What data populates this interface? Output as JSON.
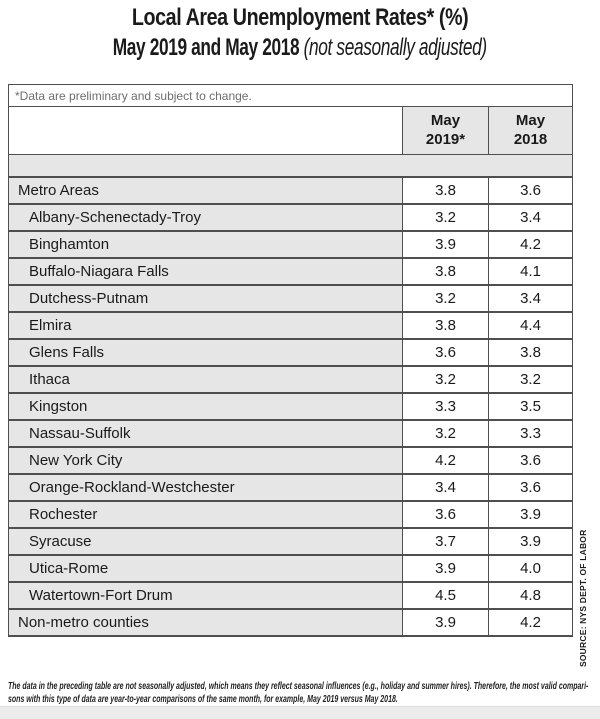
{
  "title": {
    "line1": "Local Area Unemployment Rates* (%)",
    "line2_bold": "May 2019 and May 2018",
    "line2_italic": "(not seasonally adjusted)"
  },
  "table": {
    "note": "*Data are preliminary and subject to change.",
    "header": {
      "col2019": {
        "line1": "May",
        "line2": "2019*"
      },
      "col2018": {
        "line1": "May",
        "line2": "2018"
      }
    },
    "rows": [
      {
        "label": "Metro Areas",
        "indent": false,
        "may2019": "3.8",
        "may2018": "3.6"
      },
      {
        "label": "Albany-Schenectady-Troy",
        "indent": true,
        "may2019": "3.2",
        "may2018": "3.4"
      },
      {
        "label": "Binghamton",
        "indent": true,
        "may2019": "3.9",
        "may2018": "4.2"
      },
      {
        "label": "Buffalo-Niagara Falls",
        "indent": true,
        "may2019": "3.8",
        "may2018": "4.1"
      },
      {
        "label": "Dutchess-Putnam",
        "indent": true,
        "may2019": "3.2",
        "may2018": "3.4"
      },
      {
        "label": "Elmira",
        "indent": true,
        "may2019": "3.8",
        "may2018": "4.4"
      },
      {
        "label": "Glens Falls",
        "indent": true,
        "may2019": "3.6",
        "may2018": "3.8"
      },
      {
        "label": "Ithaca",
        "indent": true,
        "may2019": "3.2",
        "may2018": "3.2"
      },
      {
        "label": "Kingston",
        "indent": true,
        "may2019": "3.3",
        "may2018": "3.5"
      },
      {
        "label": "Nassau-Suffolk",
        "indent": true,
        "may2019": "3.2",
        "may2018": "3.3"
      },
      {
        "label": "New York City",
        "indent": true,
        "may2019": "4.2",
        "may2018": "3.6"
      },
      {
        "label": "Orange-Rockland-Westchester",
        "indent": true,
        "may2019": "3.4",
        "may2018": "3.6"
      },
      {
        "label": "Rochester",
        "indent": true,
        "may2019": "3.6",
        "may2018": "3.9"
      },
      {
        "label": "Syracuse",
        "indent": true,
        "may2019": "3.7",
        "may2018": "3.9"
      },
      {
        "label": "Utica-Rome",
        "indent": true,
        "may2019": "3.9",
        "may2018": "4.0"
      },
      {
        "label": "Watertown-Fort Drum",
        "indent": true,
        "may2019": "4.5",
        "may2018": "4.8"
      },
      {
        "label": "Non-metro counties",
        "indent": false,
        "may2019": "3.9",
        "may2018": "4.2"
      }
    ]
  },
  "source": "SOURCE: NYS DEPT. OF LABOR",
  "footnote": {
    "line1": "The data in the preceding table are not seasonally adjusted, which means they reflect seasonal influences (e.g., holiday and summer hires). Therefore, the most valid compari-",
    "line2": "sons with this type of data are year-to-year comparisons of the same month, for example, May 2019 versus May 2018."
  },
  "colors": {
    "cell_gray": "#e6e6e6",
    "border_dark": "#4f4f4f",
    "note_text": "#6e6e6e",
    "text": "#1a1a1a",
    "band": "#ececec"
  }
}
